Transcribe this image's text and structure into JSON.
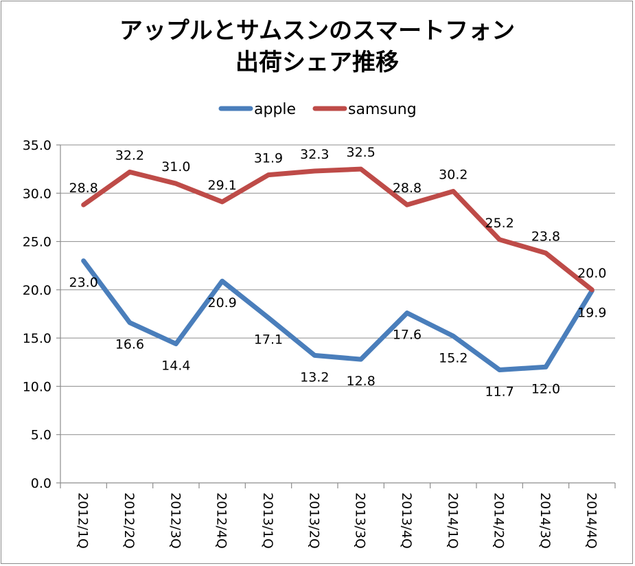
{
  "chart_data": {
    "type": "line",
    "title_lines": [
      "アップルとサムスンのスマートフォン",
      "出荷シェア推移"
    ],
    "xlabel": "",
    "ylabel": "",
    "ylim": [
      0,
      35
    ],
    "ytick_step": 5,
    "ytick_labels": [
      "0.0",
      "5.0",
      "10.0",
      "15.0",
      "20.0",
      "25.0",
      "30.0",
      "35.0"
    ],
    "grid": true,
    "legend_position": "top-center",
    "categories": [
      "2012/1Q",
      "2012/2Q",
      "2012/3Q",
      "2012/4Q",
      "2013/1Q",
      "2013/2Q",
      "2013/3Q",
      "2013/4Q",
      "2014/1Q",
      "2014/2Q",
      "2014/3Q",
      "2014/4Q"
    ],
    "series": [
      {
        "name": "apple",
        "color": "#4a7ebb",
        "values": [
          23.0,
          16.6,
          14.4,
          20.9,
          17.1,
          13.2,
          12.8,
          17.6,
          15.2,
          11.7,
          12.0,
          19.9
        ],
        "labels": [
          "23.0",
          "16.6",
          "14.4",
          "20.9",
          "17.1",
          "13.2",
          "12.8",
          "17.6",
          "15.2",
          "11.7",
          "12.0",
          "19.9"
        ]
      },
      {
        "name": "samsung",
        "color": "#be4b48",
        "values": [
          28.8,
          32.2,
          31.0,
          29.1,
          31.9,
          32.3,
          32.5,
          28.8,
          30.2,
          25.2,
          23.8,
          20.0
        ],
        "labels": [
          "28.8",
          "32.2",
          "31.0",
          "29.1",
          "31.9",
          "32.3",
          "32.5",
          "28.8",
          "30.2",
          "25.2",
          "23.8",
          "20.0"
        ]
      }
    ]
  }
}
